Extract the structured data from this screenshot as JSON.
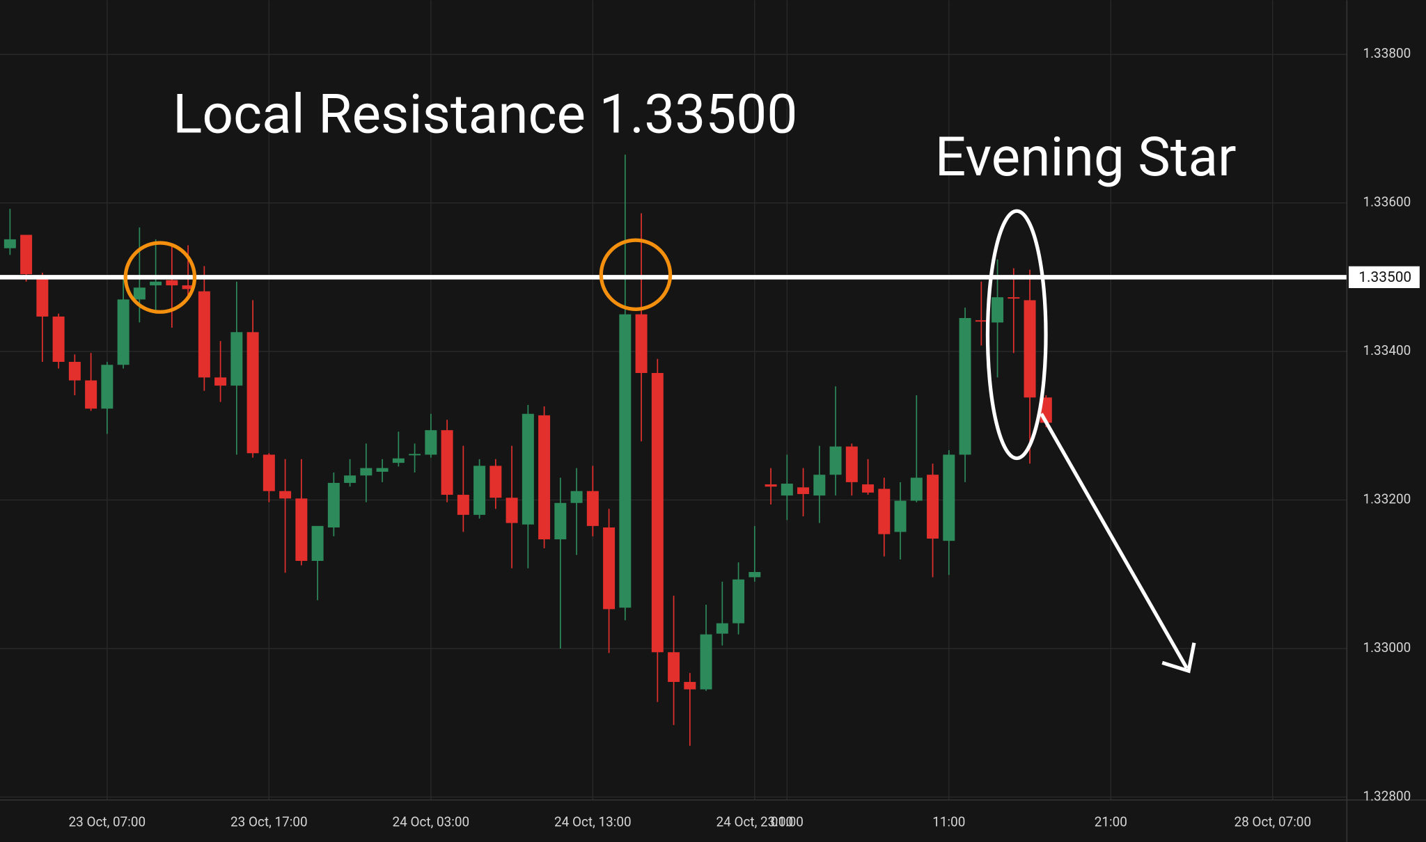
{
  "chart_data": {
    "type": "candlestick",
    "categories": [
      null,
      null,
      null,
      null,
      null,
      null,
      "23 Oct, 07:00",
      null,
      null,
      null,
      null,
      null,
      null,
      null,
      null,
      null,
      "23 Oct, 17:00",
      null,
      null,
      null,
      null,
      null,
      null,
      null,
      null,
      null,
      "24 Oct, 03:00",
      null,
      null,
      null,
      null,
      null,
      null,
      null,
      null,
      null,
      "24 Oct, 13:00",
      null,
      null,
      null,
      null,
      null,
      null,
      null,
      null,
      null,
      "24 Oct, 23:00",
      null,
      "01:00",
      null,
      null,
      null,
      null,
      null,
      null,
      null,
      null,
      null,
      "11:00",
      null,
      null,
      null,
      null,
      null,
      null,
      null,
      null,
      null,
      "21:00",
      null,
      null,
      null,
      null,
      null,
      null,
      null,
      null,
      null,
      "28 Oct, 07:00",
      null,
      null,
      null,
      null
    ],
    "open": [
      1.33539,
      1.33557,
      1.335,
      1.33447,
      1.33386,
      1.33361,
      1.33323,
      1.33382,
      1.3347,
      1.33489,
      1.33496,
      1.33489,
      1.33481,
      1.33365,
      1.33354,
      1.33426,
      1.33261,
      1.33212,
      1.33202,
      1.33118,
      1.33163,
      1.33223,
      1.33233,
      1.33238,
      1.3325,
      1.33261,
      1.33261,
      1.33294,
      1.33207,
      1.3318,
      1.33246,
      1.33203,
      1.33167,
      1.33314,
      1.33147,
      1.33196,
      1.33212,
      1.33163,
      1.33055,
      1.3345,
      1.33371,
      1.32995,
      1.32955,
      1.32945,
      1.3302,
      1.33034,
      1.33096,
      1.33221,
      1.33206,
      1.33217,
      1.33206,
      1.33234,
      1.33272,
      1.33221,
      1.33215,
      1.33157,
      1.33199,
      1.33234,
      1.33145,
      1.33261,
      1.33442,
      1.33439,
      1.33473,
      1.33469,
      1.33338,
      null,
      null,
      null,
      null,
      null,
      null,
      null,
      null,
      null,
      null,
      null,
      null,
      null,
      null,
      null,
      null,
      null,
      null
    ],
    "high": [
      1.33592,
      1.33557,
      1.33506,
      1.33451,
      1.33396,
      1.33398,
      1.33386,
      1.335,
      1.33567,
      1.33551,
      1.33545,
      1.33543,
      1.33515,
      1.33414,
      1.33494,
      1.33469,
      1.33263,
      1.33255,
      1.33255,
      1.33165,
      1.33237,
      1.33255,
      1.33276,
      1.33255,
      1.33292,
      1.33276,
      1.33316,
      1.33308,
      1.33273,
      1.33255,
      1.33255,
      1.33273,
      1.33328,
      1.33326,
      1.3323,
      1.33243,
      1.33246,
      1.33188,
      1.33665,
      1.33586,
      1.3339,
      1.33071,
      1.32967,
      1.33059,
      1.3309,
      1.33116,
      1.33165,
      1.33243,
      1.33261,
      1.33243,
      1.33273,
      1.33353,
      1.33276,
      1.33255,
      1.3323,
      1.33224,
      1.33341,
      1.33249,
      1.33267,
      1.33459,
      1.33494,
      1.33524,
      1.33512,
      1.3351,
      1.33341,
      null,
      null,
      null,
      null,
      null,
      null,
      null,
      null,
      null,
      null,
      null,
      null,
      null,
      null,
      null,
      null,
      null,
      null
    ],
    "low": [
      1.3353,
      1.33494,
      1.33386,
      1.33377,
      1.33341,
      1.3332,
      1.33289,
      1.33377,
      1.33439,
      1.33451,
      1.33432,
      1.33475,
      1.33347,
      1.33332,
      1.33261,
      1.33257,
      1.33197,
      1.33102,
      1.33112,
      1.33065,
      1.33151,
      1.33218,
      1.33197,
      1.33224,
      1.33245,
      1.33237,
      1.33257,
      1.33197,
      1.33157,
      1.33175,
      1.33188,
      1.33108,
      1.33108,
      1.33135,
      1.33,
      1.33126,
      1.33151,
      1.32994,
      1.33038,
      1.33279,
      1.32928,
      1.32897,
      1.32869,
      1.32943,
      1.33004,
      1.33019,
      1.3309,
      1.33194,
      1.33173,
      1.33178,
      1.33169,
      1.33206,
      1.33206,
      1.33207,
      1.33124,
      1.3312,
      1.33197,
      1.33096,
      1.33099,
      1.33224,
      1.33408,
      1.33365,
      1.33398,
      1.33249,
      1.33298,
      null,
      null,
      null,
      null,
      null,
      null,
      null,
      null,
      null,
      null,
      null,
      null,
      null,
      null,
      null,
      null,
      null,
      null
    ],
    "close": [
      1.33551,
      1.33504,
      1.33447,
      1.33386,
      1.33361,
      1.33323,
      1.33382,
      1.3347,
      1.33486,
      1.33494,
      1.33489,
      1.33484,
      1.33365,
      1.33354,
      1.33426,
      1.33263,
      1.33212,
      1.33202,
      1.33118,
      1.33165,
      1.33223,
      1.33233,
      1.33243,
      1.33243,
      1.33256,
      1.33262,
      1.33294,
      1.33207,
      1.3318,
      1.33246,
      1.33203,
      1.33169,
      1.33316,
      1.33147,
      1.33196,
      1.33212,
      1.33165,
      1.33053,
      1.3345,
      1.33371,
      1.32995,
      1.32955,
      1.32945,
      1.33019,
      1.33034,
      1.33093,
      1.33103,
      1.33218,
      1.33222,
      1.33208,
      1.33234,
      1.33272,
      1.33224,
      1.3321,
      1.33154,
      1.33199,
      1.3323,
      1.33148,
      1.33261,
      1.33445,
      1.33441,
      1.33473,
      1.33472,
      1.33338,
      1.33304,
      null,
      null,
      null,
      null,
      null,
      null,
      null,
      null,
      null,
      null,
      null,
      null,
      null,
      null,
      null,
      null,
      null,
      null
    ],
    "up_color": "#2d8a5a",
    "down_color": "#e3302d",
    "ylim": [
      1.32796,
      1.33873
    ],
    "yticks": [
      {
        "value": 1.328,
        "label": "1.32800"
      },
      {
        "value": 1.33,
        "label": "1.33000"
      },
      {
        "value": 1.332,
        "label": "1.33200"
      },
      {
        "value": 1.334,
        "label": "1.33400"
      },
      {
        "value": 1.336,
        "label": "1.33600"
      },
      {
        "value": 1.338,
        "label": "1.33800"
      }
    ],
    "grid": true,
    "price_line": {
      "value": 1.335,
      "label": "1.33500"
    },
    "annotations": [
      {
        "text": "Local Resistance 1.33500"
      },
      {
        "text": "Evening Star"
      }
    ]
  }
}
